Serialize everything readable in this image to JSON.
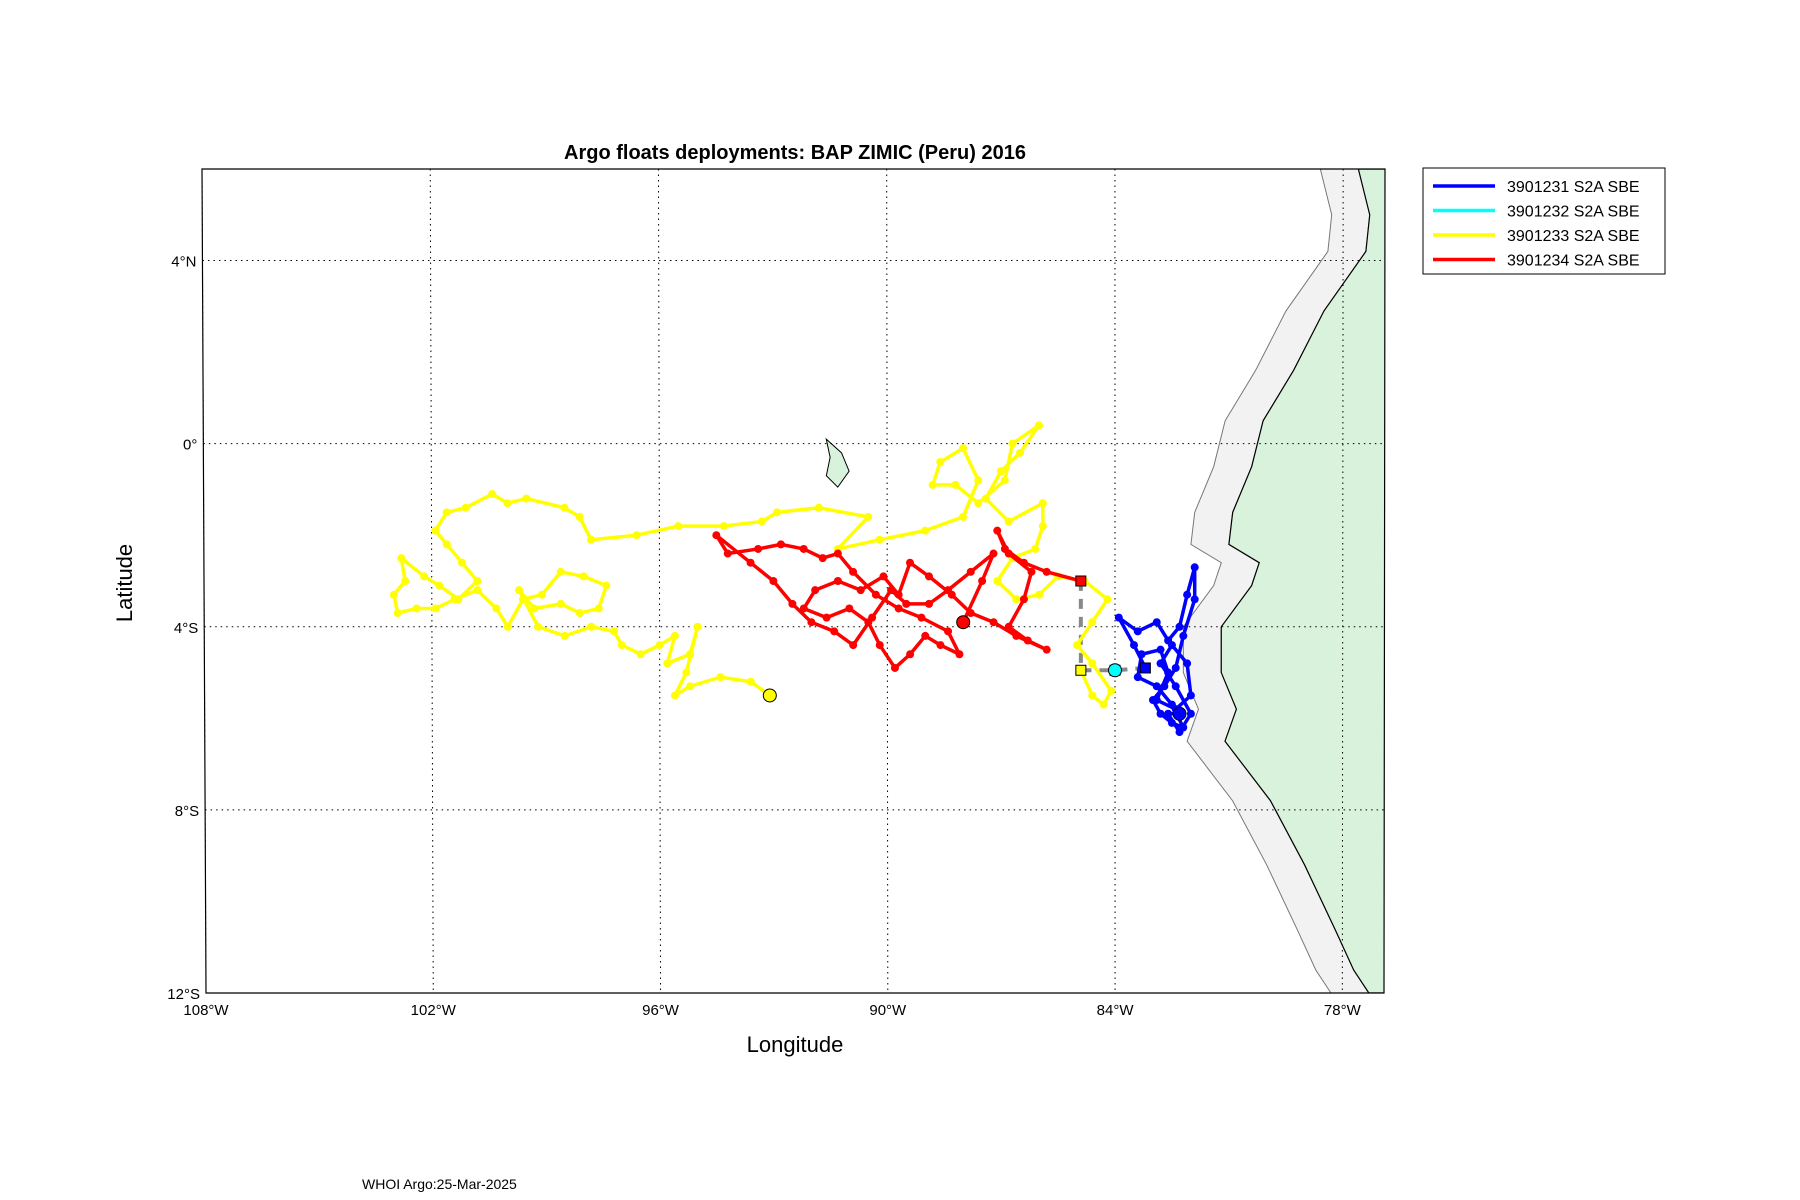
{
  "title": "Argo floats deployments: BAP ZIMIC (Peru) 2016",
  "xlabel": "Longitude",
  "ylabel": "Latitude",
  "footer": "WHOI Argo:25-Mar-2025",
  "x_ticks": [
    {
      "value": -108,
      "label": "108°W"
    },
    {
      "value": -102,
      "label": "102°W"
    },
    {
      "value": -96,
      "label": "96°W"
    },
    {
      "value": -90,
      "label": "90°W"
    },
    {
      "value": -84,
      "label": "84°W"
    },
    {
      "value": -78,
      "label": "78°W"
    }
  ],
  "y_ticks": [
    {
      "value": 4,
      "label": "4°N"
    },
    {
      "value": 0,
      "label": "0°"
    },
    {
      "value": -4,
      "label": "4°S"
    },
    {
      "value": -8,
      "label": "8°S"
    },
    {
      "value": -12,
      "label": "12°S"
    }
  ],
  "chart_data": {
    "type": "map",
    "xlim": [
      -108,
      -76.9
    ],
    "ylim": [
      -12,
      6
    ],
    "grid": true,
    "legend_position": "outside-top-right",
    "land_color": "#d9f2dc",
    "shelf_color": "#f2f2f2",
    "coastline": [
      [
        -77.6,
        6
      ],
      [
        -77.3,
        5
      ],
      [
        -77.4,
        4.2
      ],
      [
        -78.5,
        2.9
      ],
      [
        -79.3,
        1.6
      ],
      [
        -80.1,
        0.5
      ],
      [
        -80.4,
        -0.5
      ],
      [
        -80.9,
        -1.5
      ],
      [
        -81.0,
        -2.2
      ],
      [
        -80.2,
        -2.6
      ],
      [
        -80.4,
        -3.1
      ],
      [
        -81.2,
        -4.0
      ],
      [
        -81.2,
        -5.0
      ],
      [
        -80.8,
        -5.8
      ],
      [
        -81.1,
        -6.5
      ],
      [
        -79.9,
        -7.8
      ],
      [
        -79.0,
        -9.2
      ],
      [
        -78.2,
        -10.6
      ],
      [
        -77.7,
        -11.5
      ],
      [
        -77.3,
        -12
      ]
    ],
    "islands": [
      {
        "name": "isabela",
        "path": [
          [
            -91.6,
            0.1
          ],
          [
            -91.2,
            -0.2
          ],
          [
            -91.0,
            -0.6
          ],
          [
            -91.3,
            -0.95
          ],
          [
            -91.6,
            -0.7
          ],
          [
            -91.5,
            -0.3
          ]
        ]
      }
    ],
    "legend": [
      {
        "label": "3901231 S2A SBE",
        "color": "#0000ff"
      },
      {
        "label": "3901232 S2A SBE",
        "color": "#00ffff"
      },
      {
        "label": "3901233 S2A SBE",
        "color": "#ffff00"
      },
      {
        "label": "3901234 S2A SBE",
        "color": "#ff0000"
      }
    ],
    "floats": [
      {
        "color": "#0000ff",
        "deployment": [
          -83.2,
          -4.9
        ],
        "last": [
          -82.3,
          -5.9
        ],
        "track": [
          [
            -83.2,
            -4.9
          ],
          [
            -83.5,
            -4.4
          ],
          [
            -83.9,
            -3.8
          ],
          [
            -83.4,
            -4.1
          ],
          [
            -82.9,
            -3.9
          ],
          [
            -82.6,
            -4.3
          ],
          [
            -82.3,
            -4.0
          ],
          [
            -82.1,
            -3.3
          ],
          [
            -81.9,
            -2.7
          ],
          [
            -81.9,
            -3.4
          ],
          [
            -82.2,
            -4.2
          ],
          [
            -82.4,
            -4.9
          ],
          [
            -82.7,
            -5.3
          ],
          [
            -83.0,
            -5.6
          ],
          [
            -82.8,
            -5.9
          ],
          [
            -82.5,
            -6.1
          ],
          [
            -82.2,
            -6.2
          ],
          [
            -82.5,
            -5.7
          ],
          [
            -82.9,
            -5.3
          ],
          [
            -83.4,
            -5.1
          ],
          [
            -83.3,
            -4.6
          ],
          [
            -82.8,
            -4.5
          ],
          [
            -82.6,
            -5.0
          ],
          [
            -82.9,
            -5.6
          ],
          [
            -82.4,
            -5.8
          ],
          [
            -82.0,
            -5.5
          ],
          [
            -82.1,
            -4.8
          ],
          [
            -82.5,
            -4.4
          ],
          [
            -82.8,
            -4.8
          ],
          [
            -82.4,
            -5.3
          ],
          [
            -82.0,
            -5.9
          ],
          [
            -82.3,
            -6.3
          ],
          [
            -82.6,
            -5.9
          ],
          [
            -82.3,
            -5.9
          ]
        ]
      },
      {
        "color": "#00ffff",
        "deployment": [
          -84.0,
          -4.95
        ],
        "last": [
          -84.0,
          -4.95
        ],
        "track": [
          [
            -84.0,
            -4.95
          ]
        ]
      },
      {
        "color": "#ffff00",
        "deployment": [
          -84.9,
          -4.95
        ],
        "last": [
          -93.1,
          -5.5
        ],
        "track": [
          [
            -84.9,
            -4.95
          ],
          [
            -84.6,
            -5.5
          ],
          [
            -84.3,
            -5.7
          ],
          [
            -84.1,
            -5.4
          ],
          [
            -84.6,
            -4.8
          ],
          [
            -85.0,
            -4.4
          ],
          [
            -84.6,
            -3.9
          ],
          [
            -84.2,
            -3.4
          ],
          [
            -84.8,
            -3.0
          ],
          [
            -85.5,
            -2.9
          ],
          [
            -86.0,
            -3.3
          ],
          [
            -86.6,
            -3.4
          ],
          [
            -87.1,
            -3.0
          ],
          [
            -86.7,
            -2.5
          ],
          [
            -86.1,
            -2.3
          ],
          [
            -85.9,
            -1.8
          ],
          [
            -85.9,
            -1.3
          ],
          [
            -86.8,
            -1.7
          ],
          [
            -87.4,
            -1.2
          ],
          [
            -87.0,
            -0.6
          ],
          [
            -86.5,
            -0.2
          ],
          [
            -86.0,
            0.4
          ],
          [
            -86.7,
            0.0
          ],
          [
            -86.9,
            -0.8
          ],
          [
            -87.6,
            -1.3
          ],
          [
            -88.2,
            -0.9
          ],
          [
            -88.8,
            -0.9
          ],
          [
            -88.6,
            -0.4
          ],
          [
            -88.0,
            -0.1
          ],
          [
            -87.6,
            -0.8
          ],
          [
            -88.0,
            -1.6
          ],
          [
            -89.0,
            -1.9
          ],
          [
            -90.2,
            -2.1
          ],
          [
            -91.3,
            -2.3
          ],
          [
            -90.5,
            -1.6
          ],
          [
            -91.8,
            -1.4
          ],
          [
            -92.9,
            -1.5
          ],
          [
            -93.3,
            -1.7
          ],
          [
            -94.3,
            -1.8
          ],
          [
            -95.5,
            -1.8
          ],
          [
            -96.6,
            -2.0
          ],
          [
            -97.8,
            -2.1
          ],
          [
            -98.1,
            -1.6
          ],
          [
            -98.5,
            -1.4
          ],
          [
            -99.5,
            -1.2
          ],
          [
            -100.0,
            -1.3
          ],
          [
            -100.4,
            -1.1
          ],
          [
            -101.1,
            -1.4
          ],
          [
            -101.6,
            -1.5
          ],
          [
            -101.9,
            -1.9
          ],
          [
            -101.6,
            -2.2
          ],
          [
            -101.2,
            -2.6
          ],
          [
            -100.8,
            -3.0
          ],
          [
            -101.3,
            -3.4
          ],
          [
            -101.8,
            -3.1
          ],
          [
            -102.2,
            -2.9
          ],
          [
            -102.8,
            -2.5
          ],
          [
            -102.7,
            -3.0
          ],
          [
            -103.0,
            -3.3
          ],
          [
            -102.9,
            -3.7
          ],
          [
            -102.4,
            -3.6
          ],
          [
            -101.9,
            -3.6
          ],
          [
            -101.4,
            -3.4
          ],
          [
            -100.8,
            -3.2
          ],
          [
            -100.3,
            -3.6
          ],
          [
            -100.0,
            -4.0
          ],
          [
            -99.6,
            -3.4
          ],
          [
            -99.1,
            -3.3
          ],
          [
            -98.6,
            -2.8
          ],
          [
            -98.0,
            -2.9
          ],
          [
            -97.4,
            -3.1
          ],
          [
            -97.6,
            -3.6
          ],
          [
            -98.1,
            -3.7
          ],
          [
            -98.6,
            -3.5
          ],
          [
            -99.3,
            -3.6
          ],
          [
            -99.7,
            -3.2
          ],
          [
            -99.2,
            -4.0
          ],
          [
            -98.5,
            -4.2
          ],
          [
            -97.8,
            -4.0
          ],
          [
            -97.2,
            -4.1
          ],
          [
            -97.0,
            -4.4
          ],
          [
            -96.5,
            -4.6
          ],
          [
            -96.0,
            -4.4
          ],
          [
            -95.6,
            -4.2
          ],
          [
            -95.8,
            -4.8
          ],
          [
            -95.2,
            -4.6
          ],
          [
            -95.0,
            -4.0
          ],
          [
            -95.3,
            -5.0
          ],
          [
            -95.6,
            -5.5
          ],
          [
            -95.2,
            -5.3
          ],
          [
            -94.4,
            -5.1
          ],
          [
            -93.6,
            -5.2
          ],
          [
            -93.1,
            -5.5
          ]
        ]
      },
      {
        "color": "#ff0000",
        "deployment": [
          -84.9,
          -3.0
        ],
        "last": [
          -88.0,
          -3.9
        ],
        "track": [
          [
            -84.9,
            -3.0
          ],
          [
            -85.8,
            -2.8
          ],
          [
            -86.4,
            -2.6
          ],
          [
            -86.9,
            -2.3
          ],
          [
            -87.1,
            -1.9
          ],
          [
            -86.8,
            -2.4
          ],
          [
            -86.2,
            -2.8
          ],
          [
            -86.4,
            -3.4
          ],
          [
            -86.8,
            -4.0
          ],
          [
            -86.3,
            -4.3
          ],
          [
            -85.8,
            -4.5
          ],
          [
            -86.6,
            -4.2
          ],
          [
            -87.2,
            -3.9
          ],
          [
            -87.8,
            -3.7
          ],
          [
            -88.3,
            -3.3
          ],
          [
            -88.9,
            -2.9
          ],
          [
            -89.4,
            -2.6
          ],
          [
            -89.7,
            -3.3
          ],
          [
            -90.1,
            -2.9
          ],
          [
            -90.7,
            -3.2
          ],
          [
            -91.3,
            -3.0
          ],
          [
            -91.9,
            -3.2
          ],
          [
            -92.2,
            -3.6
          ],
          [
            -91.6,
            -3.8
          ],
          [
            -91.0,
            -3.6
          ],
          [
            -90.5,
            -3.9
          ],
          [
            -90.2,
            -4.4
          ],
          [
            -89.8,
            -4.9
          ],
          [
            -89.4,
            -4.6
          ],
          [
            -89.0,
            -4.2
          ],
          [
            -88.6,
            -4.4
          ],
          [
            -88.1,
            -4.6
          ],
          [
            -88.4,
            -4.1
          ],
          [
            -89.1,
            -3.8
          ],
          [
            -89.7,
            -3.6
          ],
          [
            -90.3,
            -3.3
          ],
          [
            -90.9,
            -2.8
          ],
          [
            -91.3,
            -2.4
          ],
          [
            -91.7,
            -2.5
          ],
          [
            -92.2,
            -2.3
          ],
          [
            -92.8,
            -2.2
          ],
          [
            -93.4,
            -2.3
          ],
          [
            -94.2,
            -2.4
          ],
          [
            -94.5,
            -2.0
          ],
          [
            -93.6,
            -2.6
          ],
          [
            -93.0,
            -3.0
          ],
          [
            -92.5,
            -3.5
          ],
          [
            -92.0,
            -3.9
          ],
          [
            -91.4,
            -4.1
          ],
          [
            -90.9,
            -4.4
          ],
          [
            -90.4,
            -3.8
          ],
          [
            -89.9,
            -3.2
          ],
          [
            -89.5,
            -3.5
          ],
          [
            -88.9,
            -3.5
          ],
          [
            -88.4,
            -3.2
          ],
          [
            -87.8,
            -2.8
          ],
          [
            -87.2,
            -2.4
          ],
          [
            -87.5,
            -3.0
          ],
          [
            -88.0,
            -3.9
          ]
        ]
      }
    ]
  }
}
